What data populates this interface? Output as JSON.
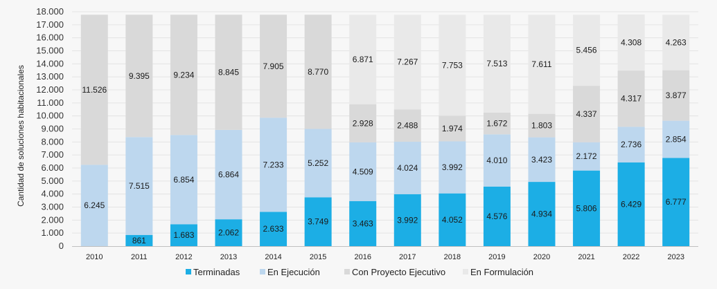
{
  "chart_data": {
    "type": "bar",
    "stacked": true,
    "title": "",
    "xlabel": "",
    "ylabel": "Cantidad de soluciones habitacionales",
    "ylim": [
      0,
      18000
    ],
    "yticks": [
      0,
      1000,
      2000,
      3000,
      4000,
      5000,
      6000,
      7000,
      8000,
      9000,
      10000,
      11000,
      12000,
      13000,
      14000,
      15000,
      16000,
      17000,
      18000
    ],
    "ytick_labels": [
      "0",
      "1.000",
      "2.000",
      "3.000",
      "4.000",
      "5.000",
      "6.000",
      "7.000",
      "8.000",
      "9.000",
      "10.000",
      "11.000",
      "12.000",
      "13.000",
      "14.000",
      "15.000",
      "16.000",
      "17.000",
      "18.000"
    ],
    "grid": true,
    "legend_position": "bottom",
    "categories": [
      "2010",
      "2011",
      "2012",
      "2013",
      "2014",
      "2015",
      "2016",
      "2017",
      "2018",
      "2019",
      "2020",
      "2021",
      "2022",
      "2023"
    ],
    "series": [
      {
        "name": "Terminadas",
        "color": "#1caee5",
        "label_color": "#1a1a1a",
        "values": [
          0,
          861,
          1683,
          2062,
          2633,
          3749,
          3463,
          3992,
          4052,
          4576,
          4934,
          5806,
          6429,
          6777
        ],
        "labels": [
          "",
          "861",
          "1.683",
          "2.062",
          "2.633",
          "3.749",
          "3.463",
          "3.992",
          "4.052",
          "4.576",
          "4.934",
          "5.806",
          "6.429",
          "6.777"
        ]
      },
      {
        "name": "En Ejecución",
        "color": "#bdd7ee",
        "label_color": "#1a1a1a",
        "values": [
          6245,
          7515,
          6854,
          6864,
          7233,
          5252,
          4509,
          4024,
          3992,
          4010,
          3423,
          2172,
          2736,
          2854
        ],
        "labels": [
          "6.245",
          "7.515",
          "6.854",
          "6.864",
          "7.233",
          "5.252",
          "4.509",
          "4.024",
          "3.992",
          "4.010",
          "3.423",
          "2.172",
          "2.736",
          "2.854"
        ]
      },
      {
        "name": "Con Proyecto Ejecutivo",
        "color": "#d9d9d9",
        "label_color": "#1a1a1a",
        "values": [
          11526,
          9395,
          9234,
          8845,
          7905,
          8770,
          2928,
          2488,
          1974,
          1672,
          1803,
          4337,
          4317,
          3877
        ],
        "labels": [
          "11.526",
          "9.395",
          "9.234",
          "8.845",
          "7.905",
          "8.770",
          "2.928",
          "2.488",
          "1.974",
          "1.672",
          "1.803",
          "4.337",
          "4.317",
          "3.877"
        ]
      },
      {
        "name": "En Formulación",
        "color": "#e9e9e9",
        "label_color": "#1a1a1a",
        "values": [
          0,
          0,
          0,
          0,
          0,
          0,
          6871,
          7267,
          7753,
          7513,
          7611,
          5456,
          4308,
          4263
        ],
        "labels": [
          "",
          "",
          "",
          "",
          "",
          "",
          "6.871",
          "7.267",
          "7.753",
          "7.513",
          "7.611",
          "5.456",
          "4.308",
          "4.263"
        ]
      }
    ]
  }
}
